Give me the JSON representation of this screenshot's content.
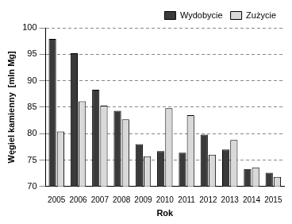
{
  "chart_data": {
    "type": "bar",
    "x_label": "Rok",
    "y_label": "Węgiel kamienny  [mln Mg]",
    "categories": [
      "2005",
      "2006",
      "2007",
      "2008",
      "2009",
      "2010",
      "2011",
      "2012",
      "2013",
      "2014",
      "2015"
    ],
    "series": [
      {
        "name": "Wydobycie",
        "color": "#3a3a3a",
        "values": [
          97.9,
          95.2,
          88.3,
          84.3,
          78.0,
          76.7,
          76.4,
          79.8,
          77.0,
          73.3,
          72.6
        ]
      },
      {
        "name": "Zużycie",
        "color": "#d9d9d9",
        "values": [
          80.4,
          86.1,
          85.3,
          82.7,
          75.7,
          84.8,
          83.5,
          76.0,
          78.8,
          73.6,
          71.8
        ]
      }
    ],
    "ylim": [
      70,
      100
    ],
    "yticks": [
      70,
      75,
      80,
      85,
      90,
      95,
      100
    ],
    "grid": true,
    "legend": "top-right"
  }
}
